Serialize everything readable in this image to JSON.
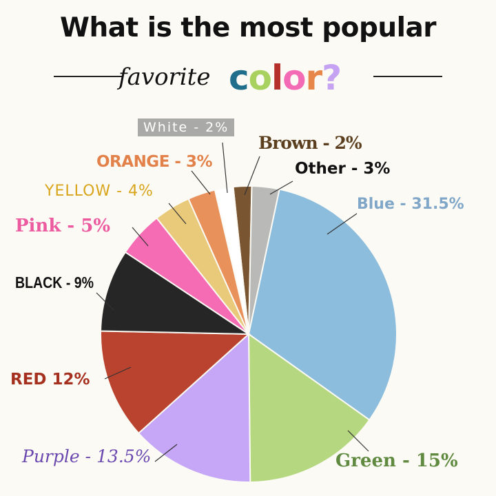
{
  "header": {
    "title": "What is the most popular",
    "subtitle_word": "favorite",
    "color_letters": [
      {
        "ch": "c",
        "color": "#1f6e8c"
      },
      {
        "ch": "o",
        "color": "#a8d160"
      },
      {
        "ch": "l",
        "color": "#b5302a"
      },
      {
        "ch": "o",
        "color": "#f46bb5"
      },
      {
        "ch": "r",
        "color": "#e8874a"
      },
      {
        "ch": "?",
        "color": "#c5a2f2"
      }
    ]
  },
  "chart_data": {
    "type": "pie",
    "title": "What is the most popular favorite color?",
    "start": "top, clockwise",
    "slices": [
      {
        "name": "Brown",
        "value": 2,
        "label": "Brown - 2%",
        "color": "#7a5532",
        "text_color": "#5b3f1f"
      },
      {
        "name": "Other",
        "value": 3,
        "label": "Other - 3%",
        "color": "#b9b9b7",
        "text_color": "#111111"
      },
      {
        "name": "Blue",
        "value": 31.5,
        "label": "Blue - 31.5%",
        "color": "#8cbddd",
        "text_color": "#80a7c8"
      },
      {
        "name": "Green",
        "value": 15,
        "label": "Green - 15%",
        "color": "#b5d77f",
        "text_color": "#5f8a40"
      },
      {
        "name": "Purple",
        "value": 13.5,
        "label": "Purple - 13.5%",
        "color": "#c6a6f6",
        "text_color": "#6a48b0"
      },
      {
        "name": "Red",
        "value": 12,
        "label": "RED 12%",
        "color": "#b9432f",
        "text_color": "#a5301f"
      },
      {
        "name": "Black",
        "value": 9,
        "label": "BLACK - 9%",
        "color": "#262626",
        "text_color": "#111111"
      },
      {
        "name": "Pink",
        "value": 5,
        "label": "Pink - 5%",
        "color": "#f56bb4",
        "text_color": "#ec5aa0"
      },
      {
        "name": "Yellow",
        "value": 4,
        "label": "YELLOW - 4%",
        "color": "#e9c97a",
        "text_color": "#d9a51c"
      },
      {
        "name": "Orange",
        "value": 3,
        "label": "ORANGE - 3%",
        "color": "#e9915b",
        "text_color": "#e3814a"
      },
      {
        "name": "White",
        "value": 2,
        "label": "White - 2%",
        "color": "#ffffff",
        "text_color": "#ffffff"
      }
    ]
  }
}
